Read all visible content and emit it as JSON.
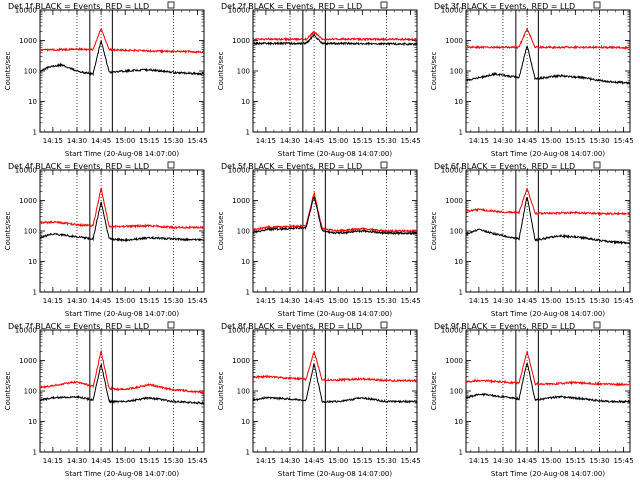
{
  "chart_data": [
    {
      "type": "line",
      "title": "Det 1f BLACK = Events, RED = LLD",
      "xlabel": "Start Time (20-Aug-08 14:07:00)",
      "ylabel": "Counts/sec",
      "ylim": [
        1,
        10000
      ],
      "yscale": "log",
      "xlim": [
        "14:07",
        "15:49"
      ],
      "x_ticks": [
        "14:15",
        "14:30",
        "14:45",
        "15:00",
        "15:15",
        "15:30",
        "15:45"
      ],
      "y_ticks": [
        "1",
        "10",
        "100",
        "1000",
        "10000"
      ],
      "dotted_lines_at": [
        "14:30",
        "14:45",
        "15:30"
      ],
      "solid_lines_at": [
        "14:38",
        "14:52"
      ],
      "series": [
        {
          "name": "RED = LLD",
          "color": "#ff0000",
          "x": [
            "14:07",
            "14:15",
            "14:30",
            "14:40",
            "14:45",
            "14:50",
            "15:00",
            "15:15",
            "15:30",
            "15:49"
          ],
          "y": [
            500,
            500,
            520,
            500,
            2500,
            500,
            480,
            450,
            440,
            420
          ]
        },
        {
          "name": "BLACK = Events",
          "color": "#000000",
          "x": [
            "14:07",
            "14:12",
            "14:20",
            "14:30",
            "14:40",
            "14:45",
            "14:50",
            "15:00",
            "15:15",
            "15:30",
            "15:49"
          ],
          "y": [
            100,
            130,
            160,
            100,
            80,
            1000,
            90,
            100,
            110,
            90,
            80
          ]
        }
      ]
    },
    {
      "type": "line",
      "title": "Det 2f BLACK = Events, RED = LLD",
      "xlabel": "Start Time (20-Aug-08 14:07:00)",
      "ylabel": "Counts/sec",
      "ylim": [
        1,
        10000
      ],
      "yscale": "log",
      "xlim": [
        "14:07",
        "15:49"
      ],
      "x_ticks": [
        "14:15",
        "14:30",
        "14:45",
        "15:00",
        "15:15",
        "15:30",
        "15:45"
      ],
      "y_ticks": [
        "1",
        "10",
        "100",
        "1000",
        "10000"
      ],
      "dotted_lines_at": [
        "14:30",
        "14:45",
        "15:30"
      ],
      "solid_lines_at": [
        "14:38",
        "14:52"
      ],
      "series": [
        {
          "name": "RED = LLD",
          "color": "#ff0000",
          "x": [
            "14:07",
            "14:30",
            "14:40",
            "14:45",
            "14:50",
            "15:00",
            "15:30",
            "15:49"
          ],
          "y": [
            1100,
            1100,
            1100,
            1900,
            1100,
            1100,
            1100,
            1100
          ]
        },
        {
          "name": "BLACK = Events",
          "color": "#000000",
          "x": [
            "14:07",
            "14:30",
            "14:40",
            "14:45",
            "14:50",
            "15:00",
            "15:30",
            "15:49"
          ],
          "y": [
            800,
            800,
            800,
            1500,
            800,
            800,
            780,
            760
          ]
        }
      ]
    },
    {
      "type": "line",
      "title": "Det 3f BLACK = Events, RED = LLD",
      "xlabel": "Start Time (20-Aug-08 14:07:00)",
      "ylabel": "Counts/sec",
      "ylim": [
        1,
        10000
      ],
      "yscale": "log",
      "xlim": [
        "14:07",
        "15:49"
      ],
      "x_ticks": [
        "14:15",
        "14:30",
        "14:45",
        "15:00",
        "15:15",
        "15:30",
        "15:45"
      ],
      "y_ticks": [
        "1",
        "10",
        "100",
        "1000",
        "10000"
      ],
      "dotted_lines_at": [
        "14:30",
        "14:45",
        "15:30"
      ],
      "solid_lines_at": [
        "14:38",
        "14:52"
      ],
      "series": [
        {
          "name": "RED = LLD",
          "color": "#ff0000",
          "x": [
            "14:07",
            "14:30",
            "14:40",
            "14:45",
            "14:50",
            "15:00",
            "15:30",
            "15:49"
          ],
          "y": [
            600,
            600,
            600,
            2500,
            600,
            600,
            600,
            580
          ]
        },
        {
          "name": "BLACK = Events",
          "color": "#000000",
          "x": [
            "14:07",
            "14:15",
            "14:25",
            "14:40",
            "14:45",
            "14:50",
            "15:05",
            "15:20",
            "15:35",
            "15:49"
          ],
          "y": [
            50,
            60,
            80,
            60,
            700,
            55,
            70,
            60,
            45,
            40
          ]
        }
      ]
    },
    {
      "type": "line",
      "title": "Det 4f BLACK = Events, RED = LLD",
      "xlabel": "Start Time (20-Aug-08 14:07:00)",
      "ylabel": "Counts/sec",
      "ylim": [
        1,
        10000
      ],
      "yscale": "log",
      "xlim": [
        "14:07",
        "15:49"
      ],
      "x_ticks": [
        "14:15",
        "14:30",
        "14:45",
        "15:00",
        "15:15",
        "15:30",
        "15:45"
      ],
      "y_ticks": [
        "1",
        "10",
        "100",
        "1000",
        "10000"
      ],
      "dotted_lines_at": [
        "14:30",
        "14:45",
        "15:30"
      ],
      "solid_lines_at": [
        "14:38",
        "14:52"
      ],
      "series": [
        {
          "name": "RED = LLD",
          "color": "#ff0000",
          "x": [
            "14:07",
            "14:15",
            "14:30",
            "14:40",
            "14:45",
            "14:50",
            "15:00",
            "15:15",
            "15:30",
            "15:49"
          ],
          "y": [
            180,
            200,
            160,
            150,
            2500,
            140,
            140,
            150,
            130,
            130
          ]
        },
        {
          "name": "BLACK = Events",
          "color": "#000000",
          "x": [
            "14:07",
            "14:15",
            "14:30",
            "14:40",
            "14:45",
            "14:50",
            "15:00",
            "15:15",
            "15:30",
            "15:49"
          ],
          "y": [
            60,
            80,
            65,
            55,
            900,
            55,
            50,
            60,
            55,
            50
          ]
        }
      ]
    },
    {
      "type": "line",
      "title": "Det 5f BLACK = Events, RED = LLD",
      "xlabel": "Start Time (20-Aug-08 14:07:00)",
      "ylabel": "Counts/sec",
      "ylim": [
        1,
        10000
      ],
      "yscale": "log",
      "xlim": [
        "14:07",
        "15:49"
      ],
      "x_ticks": [
        "14:15",
        "14:30",
        "14:45",
        "15:00",
        "15:15",
        "15:30",
        "15:45"
      ],
      "y_ticks": [
        "1",
        "10",
        "100",
        "1000",
        "10000"
      ],
      "dotted_lines_at": [
        "14:30",
        "14:45",
        "15:30"
      ],
      "solid_lines_at": [
        "14:38",
        "14:52"
      ],
      "series": [
        {
          "name": "RED = LLD",
          "color": "#ff0000",
          "x": [
            "14:07",
            "14:15",
            "14:30",
            "14:40",
            "14:45",
            "14:50",
            "15:00",
            "15:15",
            "15:30",
            "15:49"
          ],
          "y": [
            110,
            130,
            140,
            150,
            1800,
            120,
            100,
            120,
            100,
            100
          ]
        },
        {
          "name": "BLACK = Events",
          "color": "#000000",
          "x": [
            "14:07",
            "14:15",
            "14:30",
            "14:40",
            "14:45",
            "14:50",
            "15:00",
            "15:15",
            "15:30",
            "15:49"
          ],
          "y": [
            90,
            110,
            120,
            130,
            1400,
            100,
            85,
            100,
            85,
            85
          ]
        }
      ]
    },
    {
      "type": "line",
      "title": "Det 6f BLACK = Events, RED = LLD",
      "xlabel": "Start Time (20-Aug-08 14:07:00)",
      "ylabel": "Counts/sec",
      "ylim": [
        1,
        10000
      ],
      "yscale": "log",
      "xlim": [
        "14:07",
        "15:49"
      ],
      "x_ticks": [
        "14:15",
        "14:30",
        "14:45",
        "15:00",
        "15:15",
        "15:30",
        "15:45"
      ],
      "y_ticks": [
        "1",
        "10",
        "100",
        "1000",
        "10000"
      ],
      "dotted_lines_at": [
        "14:30",
        "14:45",
        "15:30"
      ],
      "solid_lines_at": [
        "14:38",
        "14:52"
      ],
      "series": [
        {
          "name": "RED = LLD",
          "color": "#ff0000",
          "x": [
            "14:07",
            "14:15",
            "14:30",
            "14:40",
            "14:45",
            "14:50",
            "15:00",
            "15:15",
            "15:30",
            "15:49"
          ],
          "y": [
            450,
            500,
            420,
            400,
            2500,
            380,
            380,
            400,
            370,
            370
          ]
        },
        {
          "name": "BLACK = Events",
          "color": "#000000",
          "x": [
            "14:07",
            "14:15",
            "14:25",
            "14:40",
            "14:45",
            "14:50",
            "15:05",
            "15:20",
            "15:35",
            "15:49"
          ],
          "y": [
            80,
            110,
            80,
            55,
            1400,
            50,
            70,
            60,
            45,
            40
          ]
        }
      ]
    },
    {
      "type": "line",
      "title": "Det 7f BLACK = Events, RED = LLD",
      "xlabel": "Start Time (20-Aug-08 14:07:00)",
      "ylabel": "Counts/sec",
      "ylim": [
        1,
        10000
      ],
      "yscale": "log",
      "xlim": [
        "14:07",
        "15:49"
      ],
      "x_ticks": [
        "14:15",
        "14:30",
        "14:45",
        "15:00",
        "15:15",
        "15:30",
        "15:45"
      ],
      "y_ticks": [
        "1",
        "10",
        "100",
        "1000",
        "10000"
      ],
      "dotted_lines_at": [
        "14:30",
        "14:45",
        "15:30"
      ],
      "solid_lines_at": [
        "14:38",
        "14:52"
      ],
      "series": [
        {
          "name": "RED = LLD",
          "color": "#ff0000",
          "x": [
            "14:07",
            "14:15",
            "14:30",
            "14:40",
            "14:45",
            "14:50",
            "15:00",
            "15:15",
            "15:30",
            "15:49"
          ],
          "y": [
            130,
            150,
            200,
            140,
            2000,
            120,
            110,
            160,
            110,
            90
          ]
        },
        {
          "name": "BLACK = Events",
          "color": "#000000",
          "x": [
            "14:07",
            "14:15",
            "14:30",
            "14:40",
            "14:45",
            "14:50",
            "15:00",
            "15:15",
            "15:30",
            "15:49"
          ],
          "y": [
            50,
            60,
            65,
            50,
            800,
            45,
            45,
            60,
            45,
            40
          ]
        }
      ]
    },
    {
      "type": "line",
      "title": "Det 8f BLACK = Events, RED = LLD",
      "xlabel": "Start Time (20-Aug-08 14:07:00)",
      "ylabel": "Counts/sec",
      "ylim": [
        1,
        10000
      ],
      "yscale": "log",
      "xlim": [
        "14:07",
        "15:49"
      ],
      "x_ticks": [
        "14:15",
        "14:30",
        "14:45",
        "15:00",
        "15:15",
        "15:30",
        "15:45"
      ],
      "y_ticks": [
        "1",
        "10",
        "100",
        "1000",
        "10000"
      ],
      "dotted_lines_at": [
        "14:30",
        "14:45",
        "15:30"
      ],
      "solid_lines_at": [
        "14:38",
        "14:52"
      ],
      "series": [
        {
          "name": "RED = LLD",
          "color": "#ff0000",
          "x": [
            "14:07",
            "14:15",
            "14:30",
            "14:40",
            "14:45",
            "14:50",
            "15:00",
            "15:15",
            "15:30",
            "15:49"
          ],
          "y": [
            280,
            300,
            260,
            240,
            2000,
            230,
            230,
            250,
            220,
            220
          ]
        },
        {
          "name": "BLACK = Events",
          "color": "#000000",
          "x": [
            "14:07",
            "14:15",
            "14:30",
            "14:40",
            "14:45",
            "14:50",
            "15:00",
            "15:15",
            "15:30",
            "15:49"
          ],
          "y": [
            50,
            60,
            55,
            50,
            800,
            45,
            45,
            60,
            45,
            45
          ]
        }
      ]
    },
    {
      "type": "line",
      "title": "Det 9f BLACK = Events, RED = LLD",
      "xlabel": "Start Time (20-Aug-08 14:07:00)",
      "ylabel": "Counts/sec",
      "ylim": [
        1,
        10000
      ],
      "yscale": "log",
      "xlim": [
        "14:07",
        "15:49"
      ],
      "x_ticks": [
        "14:15",
        "14:30",
        "14:45",
        "15:00",
        "15:15",
        "15:30",
        "15:45"
      ],
      "y_ticks": [
        "1",
        "10",
        "100",
        "1000",
        "10000"
      ],
      "dotted_lines_at": [
        "14:30",
        "14:45",
        "15:30"
      ],
      "solid_lines_at": [
        "14:38",
        "14:52"
      ],
      "series": [
        {
          "name": "RED = LLD",
          "color": "#ff0000",
          "x": [
            "14:07",
            "14:15",
            "14:30",
            "14:40",
            "14:45",
            "14:50",
            "15:00",
            "15:15",
            "15:30",
            "15:49"
          ],
          "y": [
            200,
            220,
            200,
            180,
            2000,
            170,
            170,
            190,
            170,
            160
          ]
        },
        {
          "name": "BLACK = Events",
          "color": "#000000",
          "x": [
            "14:07",
            "14:15",
            "14:25",
            "14:40",
            "14:45",
            "14:50",
            "15:05",
            "15:20",
            "15:35",
            "15:49"
          ],
          "y": [
            60,
            80,
            70,
            55,
            900,
            50,
            65,
            55,
            45,
            45
          ]
        }
      ]
    }
  ]
}
